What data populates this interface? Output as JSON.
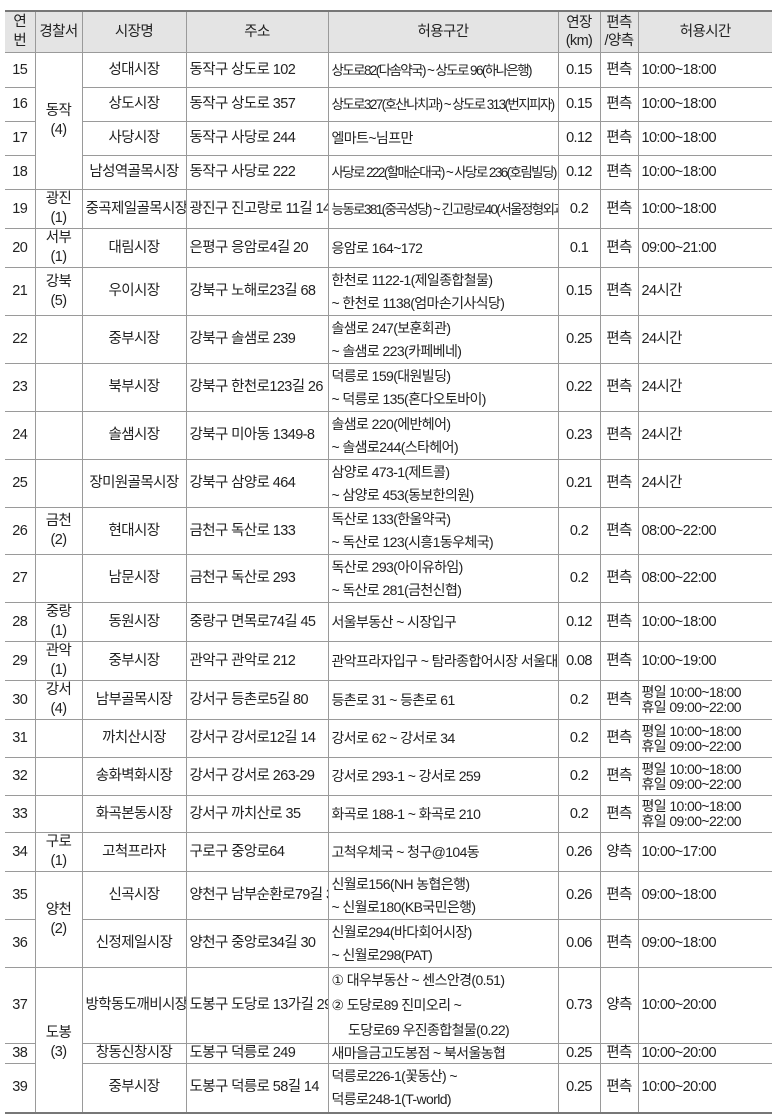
{
  "headers": [
    "연번",
    "경찰서",
    "시장명",
    "주소",
    "허용구간",
    "연장\n(km)",
    "편측\n/양측",
    "허용시간"
  ],
  "rows": [
    {
      "no": "15",
      "police": "동작\n(4)",
      "market": "성대시장",
      "address": "동작구 상도로 102",
      "section": [
        "상도로82(다솜약국) ~ 상도로 96(하나은행)"
      ],
      "km": "0.15",
      "side": "편측",
      "hours": [
        "10:00~18:00"
      ]
    },
    {
      "no": "16",
      "police": null,
      "market": "상도시장",
      "address": "동작구 상도로 357",
      "section": [
        "상도로327(호산나치과) ~ 상도로 313(번지피자)"
      ],
      "km": "0.15",
      "side": "편측",
      "hours": [
        "10:00~18:00"
      ]
    },
    {
      "no": "17",
      "police": null,
      "market": "사당시장",
      "address": "동작구 사당로 244",
      "section": [
        "엘마트~님프만"
      ],
      "km": "0.12",
      "side": "편측",
      "hours": [
        "10:00~18:00"
      ]
    },
    {
      "no": "18",
      "police": null,
      "market": "남성역골목시장",
      "address": "동작구 사당로 222",
      "section": [
        "사당로 222(할매순대국) ~ 사당로 236(호림빌딩)"
      ],
      "km": "0.12",
      "side": "편측",
      "hours": [
        "10:00~18:00"
      ]
    },
    {
      "no": "19",
      "police": "광진\n(1)",
      "market": "중곡제일골목시장",
      "address": "광진구 진고랑로 11길 14",
      "section": [
        "능동로381(중곡성당) ~ 긴고랑로40(서울정형외과)"
      ],
      "km": "0.2",
      "side": "편측",
      "hours": [
        "10:00~18:00"
      ]
    },
    {
      "no": "20",
      "police": "서부 (1)",
      "market": "대림시장",
      "address": "은평구 응암로4길 20",
      "section": [
        "응암로 164~172"
      ],
      "km": "0.1",
      "side": "편측",
      "hours": [
        "09:00~21:00"
      ]
    },
    {
      "no": "21",
      "police": "강북 (5)",
      "market": "우이시장",
      "address": "강북구 노해로23길 68",
      "section": [
        "한천로 1122-1(제일종합철물)",
        "~ 한천로 1138(엄마손기사식당)"
      ],
      "km": "0.15",
      "side": "편측",
      "hours": [
        "24시간"
      ]
    },
    {
      "no": "22",
      "police": "",
      "market": "중부시장",
      "address": "강북구 솔샘로 239",
      "section": [
        "솔샘로 247(보훈회관)",
        "~ 솔샘로 223(카페베네)"
      ],
      "km": "0.25",
      "side": "편측",
      "hours": [
        "24시간"
      ]
    },
    {
      "no": "23",
      "police": "",
      "market": "북부시장",
      "address": "강북구 한천로123길 26",
      "section": [
        "덕릉로 159(대원빌딩)",
        "~ 덕릉로 135(혼다오토바이)"
      ],
      "km": "0.22",
      "side": "편측",
      "hours": [
        "24시간"
      ]
    },
    {
      "no": "24",
      "police": "",
      "market": "솔샘시장",
      "address": "강북구 미아동 1349-8",
      "section": [
        "솔샘로 220(에반헤어)",
        "~ 솔샘로244(스타헤어)"
      ],
      "km": "0.23",
      "side": "편측",
      "hours": [
        "24시간"
      ]
    },
    {
      "no": "25",
      "police": "",
      "market": "장미원골목시장",
      "address": "강북구 삼양로 464",
      "section": [
        "삼양로 473-1(제트콜)",
        "~ 삼양로 453(동보한의원)"
      ],
      "km": "0.21",
      "side": "편측",
      "hours": [
        "24시간"
      ]
    },
    {
      "no": "26",
      "police": "금천 (2)",
      "market": "현대시장",
      "address": "금천구 독산로 133",
      "section": [
        "독산로 133(한울약국)",
        "~ 독산로 123(시흥1동우체국)"
      ],
      "km": "0.2",
      "side": "편측",
      "hours": [
        "08:00~22:00"
      ]
    },
    {
      "no": "27",
      "police": "",
      "market": "남문시장",
      "address": "금천구 독산로 293",
      "section": [
        "독산로 293(아이유하임)",
        "~ 독산로 281(금천신협)"
      ],
      "km": "0.2",
      "side": "편측",
      "hours": [
        "08:00~22:00"
      ]
    },
    {
      "no": "28",
      "police": "중랑 (1)",
      "market": "동원시장",
      "address": "중랑구 면목로74길 45",
      "section": [
        "서울부동산 ~ 시장입구"
      ],
      "km": "0.12",
      "side": "편측",
      "hours": [
        "10:00~18:00"
      ]
    },
    {
      "no": "29",
      "police": "관악 (1)",
      "market": "중부시장",
      "address": "관악구 관악로 212",
      "section": [
        "관악프라자입구 ~ 탐라종합어시장 서울대점"
      ],
      "km": "0.08",
      "side": "편측",
      "hours": [
        "10:00~19:00"
      ]
    },
    {
      "no": "30",
      "police": "강서 (4)",
      "market": "남부골목시장",
      "address": "강서구 등촌로5길 80",
      "section": [
        "등촌로 31 ~ 등촌로 61"
      ],
      "km": "0.2",
      "side": "편측",
      "hours": [
        "평일 10:00~18:00",
        "휴일 09:00~22:00"
      ]
    },
    {
      "no": "31",
      "police": "",
      "market": "까치산시장",
      "address": "강서구 강서로12길 14",
      "section": [
        "강서로 62 ~ 강서로 34"
      ],
      "km": "0.2",
      "side": "편측",
      "hours": [
        "평일 10:00~18:00",
        "휴일 09:00~22:00"
      ]
    },
    {
      "no": "32",
      "police": "",
      "market": "송화벽화시장",
      "address": "강서구 강서로 263-29",
      "section": [
        "강서로 293-1 ~ 강서로 259"
      ],
      "km": "0.2",
      "side": "편측",
      "hours": [
        "평일 10:00~18:00",
        "휴일 09:00~22:00"
      ]
    },
    {
      "no": "33",
      "police": "",
      "market": "화곡본동시장",
      "address": "강서구 까치산로 35",
      "section": [
        "화곡로 188-1 ~ 화곡로 210"
      ],
      "km": "0.2",
      "side": "편측",
      "hours": [
        "평일 10:00~18:00",
        "휴일 09:00~22:00"
      ]
    },
    {
      "no": "34",
      "police": "구로\n(1)",
      "market": "고척프라자",
      "address": "구로구 중앙로64",
      "section": [
        "고척우체국 ~ 청구@104동"
      ],
      "km": "0.26",
      "side": "양측",
      "hours": [
        "10:00~17:00"
      ]
    },
    {
      "no": "35",
      "police": "양천 (2)",
      "market": "신곡시장",
      "address": "양천구 남부순환로79길 37",
      "section": [
        "신월로156(NH 농협은행)",
        "~ 신월로180(KB국민은행)"
      ],
      "km": "0.26",
      "side": "편측",
      "hours": [
        "09:00~18:00"
      ]
    },
    {
      "no": "36",
      "police": null,
      "market": "신정제일시장",
      "address": "양천구 중앙로34길 30",
      "section": [
        "신월로294(바다회어시장)",
        "~ 신월로298(PAT)"
      ],
      "km": "0.06",
      "side": "편측",
      "hours": [
        "09:00~18:00"
      ]
    },
    {
      "no": "37",
      "police": "도봉 (3)",
      "market": "방학동도깨비시장",
      "address": "도봉구 도당로 13가길 29",
      "section": [
        "① 대우부동산 ~ 센스안경(0.51)",
        "② 도당로89 진미오리 ~",
        "     도당로69 우진종합철물(0.22)"
      ],
      "km": "0.73",
      "side": "양측",
      "hours": [
        "10:00~20:00"
      ]
    },
    {
      "no": "38",
      "police": null,
      "market": "창동신창시장",
      "address": "도봉구 덕릉로 249",
      "section": [
        "새마을금고도봉점 ~ 북서울농협"
      ],
      "km": "0.25",
      "side": "편측",
      "hours": [
        "10:00~20:00"
      ]
    },
    {
      "no": "39",
      "police": null,
      "market": "중부시장",
      "address": "도봉구 덕릉로 58길 14",
      "section": [
        "덕릉로226-1(꽃동산) ~",
        "덕릉로248-1(T-world)"
      ],
      "km": "0.25",
      "side": "편측",
      "hours": [
        "10:00~20:00"
      ]
    }
  ]
}
